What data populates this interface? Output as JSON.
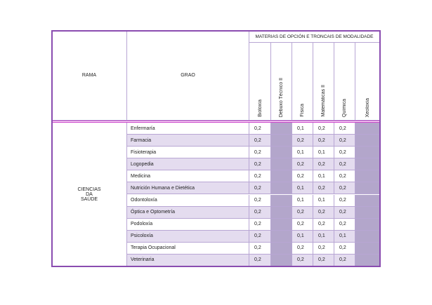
{
  "table": {
    "title": "MATERIAS DE OPCIÓN E TRONCAIS DE MODALIDADE",
    "rama_header": "RAMA",
    "grao_header": "GRAO",
    "subjects": [
      "Bioloxía",
      "Debuxo Técnico II",
      "Física",
      "Matemáticas II",
      "Química",
      "Xeoloxía"
    ],
    "rama": [
      "CIENCIAS",
      "DA",
      "SAÚDE"
    ],
    "rows": [
      [
        "Enfermaría",
        "0,2",
        null,
        "0,1",
        "0,2",
        "0,2",
        null
      ],
      [
        "Farmacia",
        "0,2",
        null,
        "0,2",
        "0,2",
        "0,2",
        null
      ],
      [
        "Fisioterapia",
        "0,2",
        null,
        "0,1",
        "0,1",
        "0,2",
        null
      ],
      [
        "Logopedia",
        "0,2",
        null,
        "0,2",
        "0,2",
        "0,2",
        null
      ],
      [
        "Medicina",
        "0,2",
        null,
        "0,2",
        "0,1",
        "0,2",
        null
      ],
      [
        "Nutrición Humana e Dietética",
        "0,2",
        null,
        "0,1",
        "0,2",
        "0,2",
        null
      ],
      [
        "Odontoloxía",
        "0,2",
        null,
        "0,1",
        "0,1",
        "0,2",
        null
      ],
      [
        "Óptica e Optometría",
        "0,2",
        null,
        "0,2",
        "0,2",
        "0,2",
        null
      ],
      [
        "Podoloxía",
        "0,2",
        null,
        "0,2",
        "0,2",
        "0,2",
        null
      ],
      [
        "Psicoloxía",
        "0,2",
        null,
        "0,1",
        "0,1",
        "0,1",
        null
      ],
      [
        "Terapia Ocupacional",
        "0,2",
        null,
        "0,2",
        "0,2",
        "0,2",
        null
      ],
      [
        "Veterinaria",
        "0,2",
        null,
        "0,2",
        "0,2",
        "0,2",
        null
      ]
    ]
  }
}
